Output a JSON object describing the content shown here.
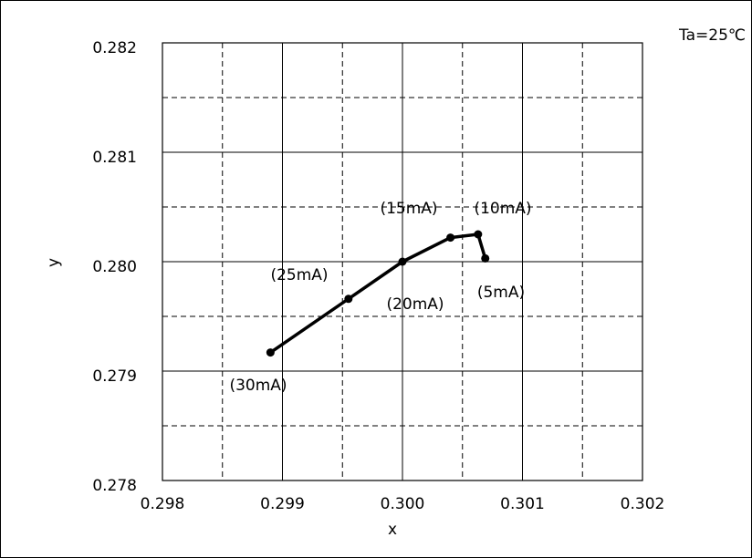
{
  "chart_data": {
    "type": "line",
    "title": "",
    "xlabel": "x",
    "ylabel": "y",
    "annotation": "Ta=25℃",
    "xlim": [
      0.298,
      0.302
    ],
    "ylim": [
      0.278,
      0.282
    ],
    "x_ticks": [
      "0.298",
      "0.299",
      "0.300",
      "0.301",
      "0.302"
    ],
    "y_ticks": [
      "0.278",
      "0.279",
      "0.280",
      "0.281",
      "0.282"
    ],
    "grid": "solid major, dashed minor",
    "series": [
      {
        "points": [
          {
            "x": 0.30069,
            "y": 0.28003,
            "label": "(5mA)"
          },
          {
            "x": 0.30063,
            "y": 0.28025,
            "label": "(10mA)"
          },
          {
            "x": 0.3004,
            "y": 0.28022,
            "label": "(15mA)"
          },
          {
            "x": 0.3,
            "y": 0.28,
            "label": "(20mA)"
          },
          {
            "x": 0.29955,
            "y": 0.27966,
            "label": "(25mA)"
          },
          {
            "x": 0.2989,
            "y": 0.27917,
            "label": "(30mA)"
          }
        ]
      }
    ]
  }
}
